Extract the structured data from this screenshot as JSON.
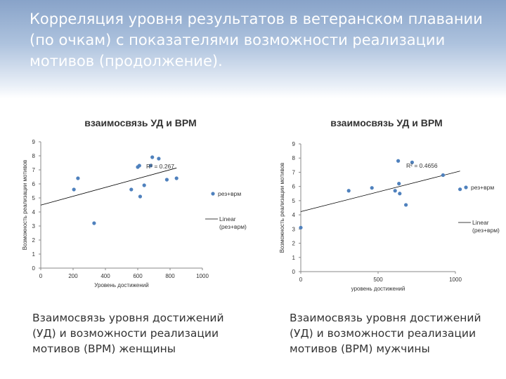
{
  "slide": {
    "title": "Корреляция уровня результатов в ветеранском плавании (по очкам) с показателями возможности реализации мотивов (продолжение)."
  },
  "colors": {
    "point": "#4f81bd",
    "trendline": "#000000",
    "axis": "#888888"
  },
  "captions": {
    "left": "Взаимосвязь уровня достижений (УД) и возможности реализации мотивов (ВРМ) женщины",
    "right": "Взаимосвязь уровня достижений (УД) и возможности реализации мотивов (ВРМ) мужчины"
  },
  "chart_data": [
    {
      "type": "scatter",
      "title": "взаимосвязь УД и ВРМ",
      "xlabel": "Уровень достижений",
      "ylabel": "Возможность реализации мотивов",
      "xlim": [
        0,
        1000
      ],
      "ylim": [
        0,
        9
      ],
      "x_ticks": [
        0,
        200,
        400,
        600,
        800,
        1000
      ],
      "y_ticks": [
        0,
        1,
        2,
        3,
        4,
        5,
        6,
        7,
        8,
        9
      ],
      "legend": [
        "рез+врм",
        "Linear (рез+врм)"
      ],
      "legend_placement": "right",
      "annotation": "R² = 0.267",
      "grid": false,
      "series": [
        {
          "name": "рез+врм",
          "points": [
            [
              205,
              5.6
            ],
            [
              230,
              6.4
            ],
            [
              330,
              3.2
            ],
            [
              560,
              5.6
            ],
            [
              600,
              7.2
            ],
            [
              610,
              7.3
            ],
            [
              615,
              5.1
            ],
            [
              640,
              5.9
            ],
            [
              680,
              7.3
            ],
            [
              690,
              7.9
            ],
            [
              730,
              7.8
            ],
            [
              780,
              6.3
            ],
            [
              840,
              6.4
            ]
          ]
        }
      ]
    },
    {
      "type": "scatter",
      "title": "взаимосвязь УД и ВРМ",
      "xlabel": "уровень достижений",
      "ylabel": "Возможность реализации мотивов",
      "xlim": [
        0,
        1000
      ],
      "ylim": [
        0,
        9
      ],
      "x_ticks": [
        0,
        500,
        1000
      ],
      "y_ticks": [
        0,
        1,
        2,
        3,
        4,
        5,
        6,
        7,
        8,
        9
      ],
      "legend": [
        "рез+врм",
        "Linear (рез+врм)"
      ],
      "legend_placement": "right",
      "annotation": "R² = 0.4656",
      "grid": false,
      "series": [
        {
          "name": "рез+врм",
          "points": [
            [
              0,
              3.1
            ],
            [
              310,
              5.7
            ],
            [
              460,
              5.9
            ],
            [
              610,
              5.7
            ],
            [
              630,
              7.8
            ],
            [
              635,
              6.2
            ],
            [
              640,
              5.5
            ],
            [
              680,
              4.7
            ],
            [
              720,
              7.7
            ],
            [
              920,
              6.8
            ],
            [
              1030,
              5.8
            ]
          ]
        }
      ]
    }
  ]
}
